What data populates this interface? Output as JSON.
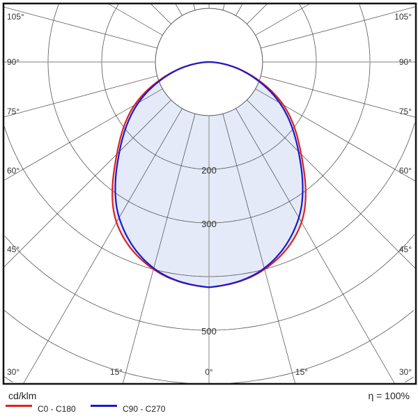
{
  "chart_data": {
    "type": "polar",
    "unit_label": "cd/klm",
    "efficiency_label": "η = 100%",
    "radial_ticks": [
      200,
      300,
      500
    ],
    "radial_rings": [
      100,
      200,
      300,
      400,
      500,
      600,
      700,
      800
    ],
    "angle_labels_left": [
      "105°",
      "90°",
      "75°",
      "60°",
      "45°",
      "30°"
    ],
    "angle_labels_bottom": [
      "15°",
      "0°",
      "15°"
    ],
    "angle_labels_right": [
      "105°",
      "90°",
      "75°",
      "60°",
      "45°",
      "30°"
    ],
    "angles": [
      0,
      15,
      30,
      45,
      60,
      75,
      90
    ],
    "series": [
      {
        "name": "C0 - C180",
        "color": "#e02020",
        "values": [
          420,
          400,
          345,
          243,
          160,
          68,
          0
        ]
      },
      {
        "name": "C90 - C270",
        "color": "#1a1acc",
        "values": [
          420,
          398,
          335,
          236,
          152,
          66,
          0
        ]
      }
    ],
    "fill_color": "#e4eaf8"
  }
}
